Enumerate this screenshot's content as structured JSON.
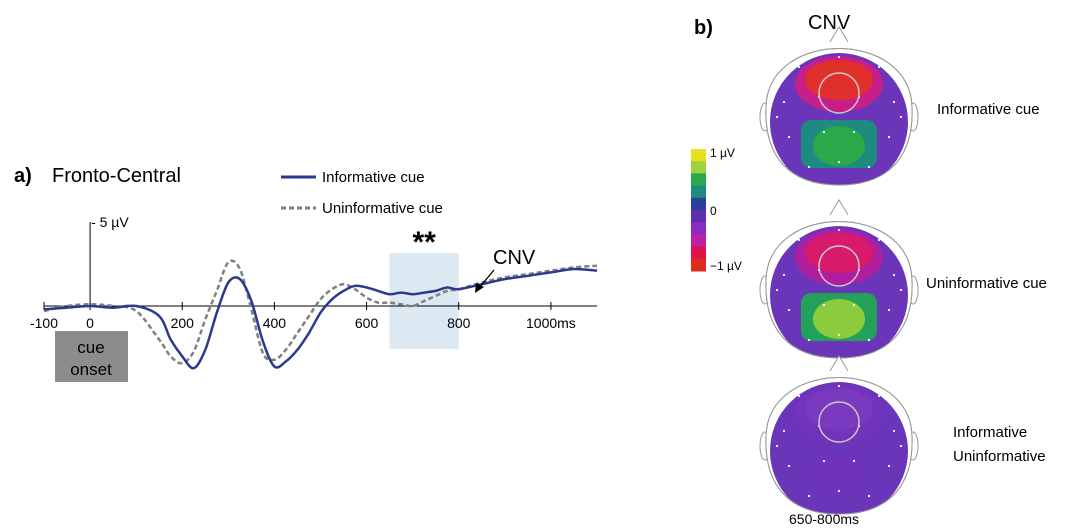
{
  "panel_a": {
    "label": "a)",
    "title": "Fronto-Central",
    "cue_box": [
      "cue",
      "onset"
    ],
    "significance": "**",
    "annotation": "CNV",
    "scale_label": "- 5 µV",
    "colors": {
      "informative": "#2b3a8c",
      "uninformative": "#808080",
      "highlight": "#dce8f2",
      "cue_box": "#8c8c8c"
    }
  },
  "panel_b": {
    "label": "b)",
    "title": "CNV",
    "time_window": "650-800ms",
    "colorbar_ticks": [
      "1 µV",
      "0",
      "−1 µV"
    ],
    "colorbar_colors": [
      "#e8e020",
      "#9fd240",
      "#2aa84a",
      "#1f8a80",
      "#2a3f9a",
      "#5b2fb0",
      "#8a2cc4",
      "#c01fa6",
      "#e0124a",
      "#e02a20"
    ],
    "maps": [
      {
        "label_lines": [
          "Informative cue"
        ],
        "front": "#e0302c",
        "front_mid": "#c81e8a",
        "back": "#2aa84a",
        "back_mid": "#1f8a80",
        "base": "#6a35b8"
      },
      {
        "label_lines": [
          "Uninformative cue"
        ],
        "front": "#d81a6a",
        "front_mid": "#b01ea0",
        "back": "#8ccc3c",
        "back_mid": "#23a05a",
        "base": "#6a35b8"
      },
      {
        "label_lines": [
          "Informative",
          "Uninformative"
        ],
        "front": "#7a3ac0",
        "front_mid": "#7433bc",
        "back": "#6e33ba",
        "back_mid": "#6a35b8",
        "base": "#6a35b8"
      }
    ]
  },
  "chart_data": {
    "type": "line",
    "title": "Fronto-Central",
    "xlabel": "ms",
    "ylabel": "µV (negative up)",
    "xlim": [
      -100,
      1100
    ],
    "ylim": [
      5,
      -7
    ],
    "xticks": [
      -100,
      0,
      200,
      400,
      600,
      800,
      1000
    ],
    "xtick_labels": [
      "-100",
      "0",
      "200",
      "400",
      "600",
      "800",
      "1000ms"
    ],
    "y_scale_bar": {
      "value": -5,
      "label": "- 5 µV"
    },
    "highlight_window": [
      650,
      800
    ],
    "legend_position": "top-right",
    "series": [
      {
        "name": "Informative cue",
        "style": "solid",
        "x": [
          -100,
          -50,
          0,
          50,
          100,
          150,
          175,
          200,
          225,
          250,
          275,
          300,
          325,
          350,
          375,
          400,
          425,
          450,
          475,
          500,
          525,
          550,
          575,
          600,
          625,
          650,
          675,
          700,
          725,
          750,
          775,
          800,
          850,
          900,
          950,
          1000,
          1050,
          1100
        ],
        "y": [
          0.2,
          0.1,
          0.0,
          0.1,
          0.0,
          0.6,
          2.0,
          3.0,
          3.7,
          2.6,
          0.4,
          -1.4,
          -1.6,
          -0.3,
          2.1,
          3.6,
          3.3,
          2.6,
          1.6,
          0.4,
          -0.4,
          -0.9,
          -1.2,
          -1.1,
          -0.9,
          -0.7,
          -0.8,
          -0.7,
          -0.8,
          -0.9,
          -1.1,
          -1.0,
          -1.3,
          -1.6,
          -1.8,
          -2.0,
          -2.2,
          -2.1
        ]
      },
      {
        "name": "Uninformative cue",
        "style": "dashed",
        "x": [
          -100,
          -50,
          0,
          50,
          100,
          150,
          175,
          200,
          225,
          250,
          275,
          300,
          325,
          350,
          375,
          400,
          425,
          450,
          475,
          500,
          525,
          550,
          575,
          600,
          625,
          650,
          675,
          700,
          725,
          750,
          775,
          800,
          850,
          900,
          950,
          1000,
          1050,
          1100
        ],
        "y": [
          0.3,
          0.0,
          -0.1,
          0.0,
          0.3,
          2.0,
          3.0,
          3.4,
          2.7,
          0.8,
          -0.9,
          -2.6,
          -2.2,
          0.2,
          2.8,
          3.2,
          2.6,
          1.6,
          0.6,
          -0.4,
          -1.0,
          -1.3,
          -1.0,
          -0.5,
          -0.2,
          -0.2,
          -0.1,
          0.0,
          -0.3,
          -0.6,
          -0.9,
          -1.0,
          -1.4,
          -1.7,
          -1.9,
          -2.1,
          -2.3,
          -2.4
        ]
      }
    ]
  }
}
